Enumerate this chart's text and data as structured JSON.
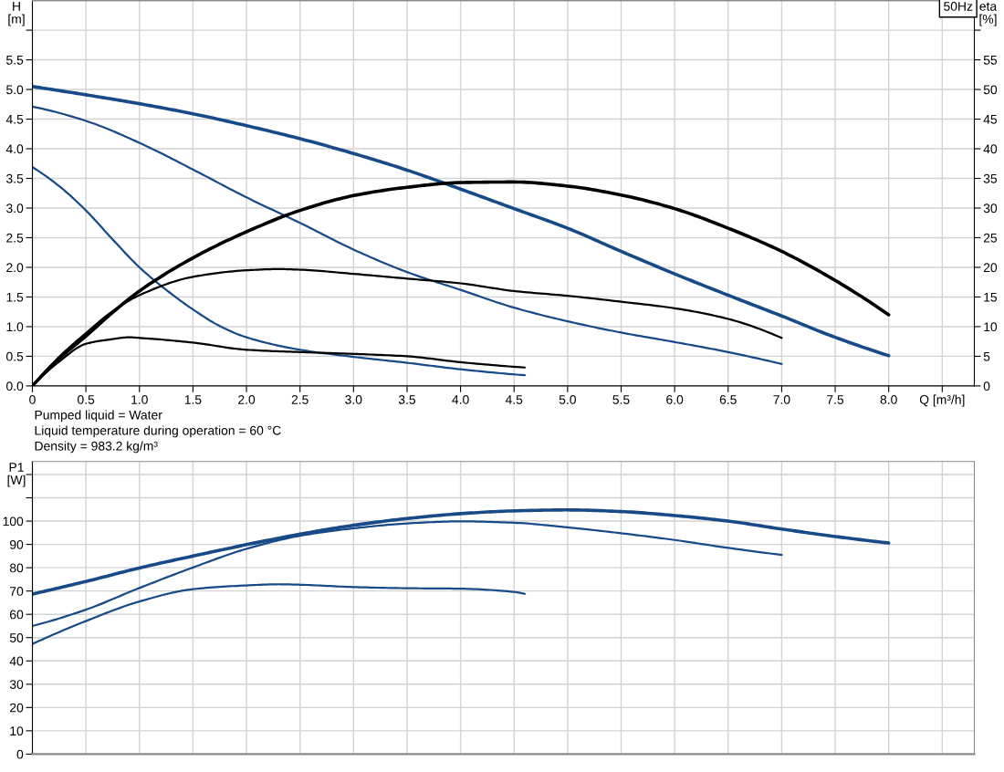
{
  "chart_data": [
    {
      "type": "line",
      "title": "50Hz",
      "xlabel": "Q [m³/h]",
      "ylabel": "H\n[m]",
      "y2label": "eta\n[%]",
      "annotations": [
        "Pumped liquid = Water",
        "Liquid temperature during operation = 60 °C",
        "Density = 983.2 kg/m³"
      ],
      "xlim": [
        0,
        8.8
      ],
      "ylim": [
        0,
        6.5
      ],
      "y2lim": [
        0,
        65
      ],
      "xticks": [
        0,
        0.5,
        {
          "value": 1,
          "label": "1.0"
        },
        1.5,
        {
          "value": 2,
          "label": "2.0"
        },
        2.5,
        {
          "value": 3,
          "label": "3.0"
        },
        3.5,
        {
          "value": 4,
          "label": "4.0"
        },
        4.5,
        {
          "value": 5,
          "label": "5.0"
        },
        5.5,
        {
          "value": 6,
          "label": "6.0"
        },
        6.5,
        {
          "value": 7,
          "label": "7.0"
        },
        7.5,
        {
          "value": 8,
          "label": "8.0"
        },
        {
          "value": 8.5,
          "label": null
        }
      ],
      "yticks": [
        {
          "value": 0,
          "label": "0.0"
        },
        0.5,
        {
          "value": 1,
          "label": "1.0"
        },
        1.5,
        {
          "value": 2,
          "label": "2.0"
        },
        2.5,
        {
          "value": 3,
          "label": "3.0"
        },
        3.5,
        {
          "value": 4,
          "label": "4.0"
        },
        4.5,
        {
          "value": 5,
          "label": "5.0"
        },
        5.5,
        {
          "value": 6,
          "label": null
        }
      ],
      "y2ticks": [
        0,
        5,
        10,
        15,
        20,
        25,
        30,
        35,
        40,
        45,
        50,
        55,
        {
          "value": 60,
          "label": null
        }
      ],
      "grid": true,
      "series": [
        {
          "axis": "y",
          "color": "#174a87",
          "x": [
            0,
            0.5,
            1,
            1.5,
            2,
            2.5,
            3,
            3.5,
            4,
            4.5,
            5,
            5.5,
            6,
            6.5,
            7,
            7.5,
            8
          ],
          "values": [
            5.05,
            4.91,
            4.76,
            4.59,
            4.39,
            4.17,
            3.92,
            3.64,
            3.32,
            2.99,
            2.66,
            2.27,
            1.89,
            1.53,
            1.18,
            0.82,
            0.51
          ]
        },
        {
          "axis": "y",
          "color": "#174a87",
          "x": [
            0,
            0.5,
            1,
            1.5,
            2,
            2.5,
            3,
            3.5,
            4,
            4.5,
            5,
            5.5,
            6,
            6.5,
            7
          ],
          "values": [
            4.71,
            4.47,
            4.1,
            3.65,
            3.18,
            2.75,
            2.3,
            1.92,
            1.62,
            1.32,
            1.09,
            0.9,
            0.74,
            0.57,
            0.37
          ]
        },
        {
          "axis": "y",
          "color": "#174a87",
          "x": [
            0,
            0.25,
            0.5,
            0.75,
            1,
            1.25,
            1.5,
            1.75,
            2,
            2.5,
            3,
            3.5,
            4,
            4.6
          ],
          "values": [
            3.69,
            3.37,
            2.96,
            2.47,
            2.0,
            1.62,
            1.29,
            1.01,
            0.82,
            0.61,
            0.49,
            0.39,
            0.28,
            0.18
          ]
        },
        {
          "axis": "y2",
          "color": "#000000",
          "x": [
            0,
            0.25,
            0.5,
            0.75,
            1,
            1.5,
            2,
            2.5,
            3,
            3.5,
            4,
            4.5,
            5,
            5.5,
            6,
            6.5,
            7,
            7.5,
            8
          ],
          "values": [
            0,
            4.6,
            8.4,
            12.4,
            16.0,
            21.6,
            26.0,
            29.6,
            32.1,
            33.5,
            34.3,
            34.4,
            33.7,
            32.2,
            29.9,
            26.6,
            22.7,
            17.8,
            12.0
          ]
        },
        {
          "axis": "y2",
          "color": "#000000",
          "x": [
            0,
            0.25,
            0.5,
            0.75,
            1,
            1.5,
            2,
            2.3,
            2.5,
            3,
            3.5,
            4,
            4.5,
            5,
            5.5,
            6,
            6.5,
            7
          ],
          "values": [
            0,
            4.9,
            8.9,
            12.6,
            15.3,
            18.4,
            19.5,
            19.7,
            19.6,
            18.9,
            18.1,
            17.3,
            16.0,
            15.2,
            14.2,
            13.1,
            11.3,
            8.1
          ]
        },
        {
          "axis": "y2",
          "color": "#000000",
          "x": [
            0,
            0.25,
            0.5,
            0.75,
            0.9,
            1,
            1.5,
            2,
            2.5,
            3,
            3.5,
            4,
            4.6
          ],
          "values": [
            0,
            4.1,
            7.1,
            7.9,
            8.2,
            8.1,
            7.3,
            6.1,
            5.7,
            5.4,
            5.0,
            4.0,
            3.1
          ]
        }
      ]
    },
    {
      "type": "line",
      "ylabel": "P1\n[W]",
      "xlim": [
        0,
        8.8
      ],
      "ylim": [
        0,
        125.6
      ],
      "xticks": [
        0,
        0.5,
        1,
        1.5,
        2,
        2.5,
        3,
        3.5,
        4,
        4.5,
        5,
        5.5,
        6,
        6.5,
        7,
        7.5,
        8,
        8.5
      ],
      "yticks": [
        0,
        10,
        20,
        30,
        40,
        50,
        60,
        70,
        80,
        90,
        100,
        {
          "value": 110,
          "label": null
        },
        {
          "value": 120,
          "label": null
        }
      ],
      "tick_labels": "y",
      "grid": true,
      "series": [
        {
          "color": "#174a87",
          "x": [
            0,
            0.5,
            1,
            1.5,
            2,
            2.5,
            3,
            3.5,
            4,
            4.5,
            5,
            5.5,
            6,
            6.5,
            7,
            7.5,
            8
          ],
          "values": [
            68.7,
            74.1,
            79.9,
            85.0,
            89.9,
            94.4,
            98.2,
            101.1,
            103.2,
            104.4,
            104.8,
            104.1,
            102.4,
            100.0,
            96.6,
            93.4,
            90.6
          ]
        },
        {
          "color": "#174a87",
          "x": [
            0,
            0.5,
            1,
            1.5,
            2,
            2.5,
            3,
            3.5,
            4,
            4.5,
            5,
            5.5,
            6,
            6.5,
            7
          ],
          "values": [
            55.0,
            62.0,
            71.3,
            80.1,
            88.1,
            93.7,
            96.9,
            99.0,
            99.9,
            99.3,
            97.3,
            94.8,
            91.9,
            88.5,
            85.5
          ]
        },
        {
          "color": "#174a87",
          "x": [
            0,
            0.5,
            1,
            1.5,
            2,
            2.3,
            2.5,
            3,
            3.5,
            4,
            4.5,
            4.6
          ],
          "values": [
            47.3,
            57.1,
            65.5,
            70.8,
            72.4,
            72.9,
            72.7,
            71.7,
            71.2,
            71.0,
            69.6,
            68.8
          ]
        }
      ]
    }
  ]
}
